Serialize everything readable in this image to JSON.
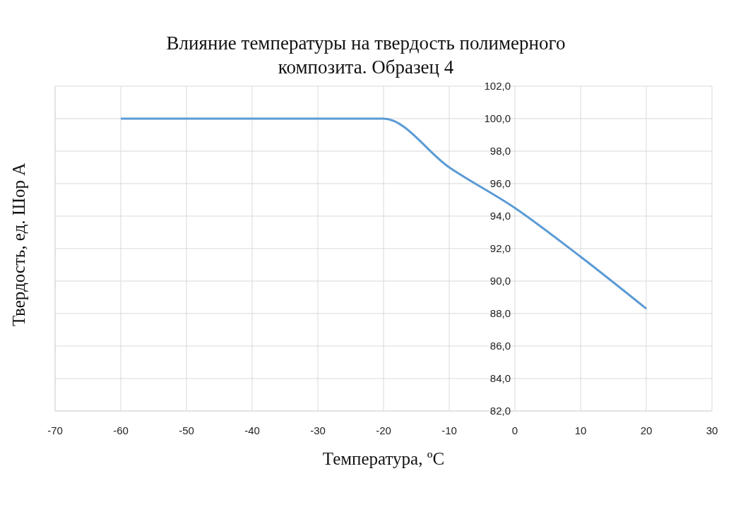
{
  "chart_data": {
    "type": "line",
    "title": "Влияние  температуры на твердость полимерного композита. Образец 4",
    "xlabel": "Температура, ºС",
    "ylabel": "Твердость, ед. Шор А",
    "x": [
      -60,
      -30,
      -20,
      -10,
      0,
      10,
      20
    ],
    "series": [
      {
        "color": "#5b9bd5",
        "values": [
          100,
          100,
          100,
          97,
          94.5,
          91.5,
          88.3
        ]
      }
    ],
    "xlim": [
      -70,
      30
    ],
    "xticks": [
      -70,
      -60,
      -50,
      -40,
      -30,
      -20,
      -10,
      0,
      10,
      20,
      30
    ],
    "ylim": [
      82,
      102
    ],
    "yticks": [
      {
        "value": 82,
        "label": "82,0"
      },
      {
        "value": 84,
        "label": "84,0"
      },
      {
        "value": 86,
        "label": "86,0"
      },
      {
        "value": 88,
        "label": "88,0"
      },
      {
        "value": 90,
        "label": "90,0"
      },
      {
        "value": 92,
        "label": "92,0"
      },
      {
        "value": 94,
        "label": "94,0"
      },
      {
        "value": 96,
        "label": "96,0"
      },
      {
        "value": 98,
        "label": "98,0"
      },
      {
        "value": 100,
        "label": "100,0"
      },
      {
        "value": 102,
        "label": "102,0"
      }
    ],
    "grid": true,
    "marker": "none",
    "line_style": "solid",
    "legend": false
  }
}
